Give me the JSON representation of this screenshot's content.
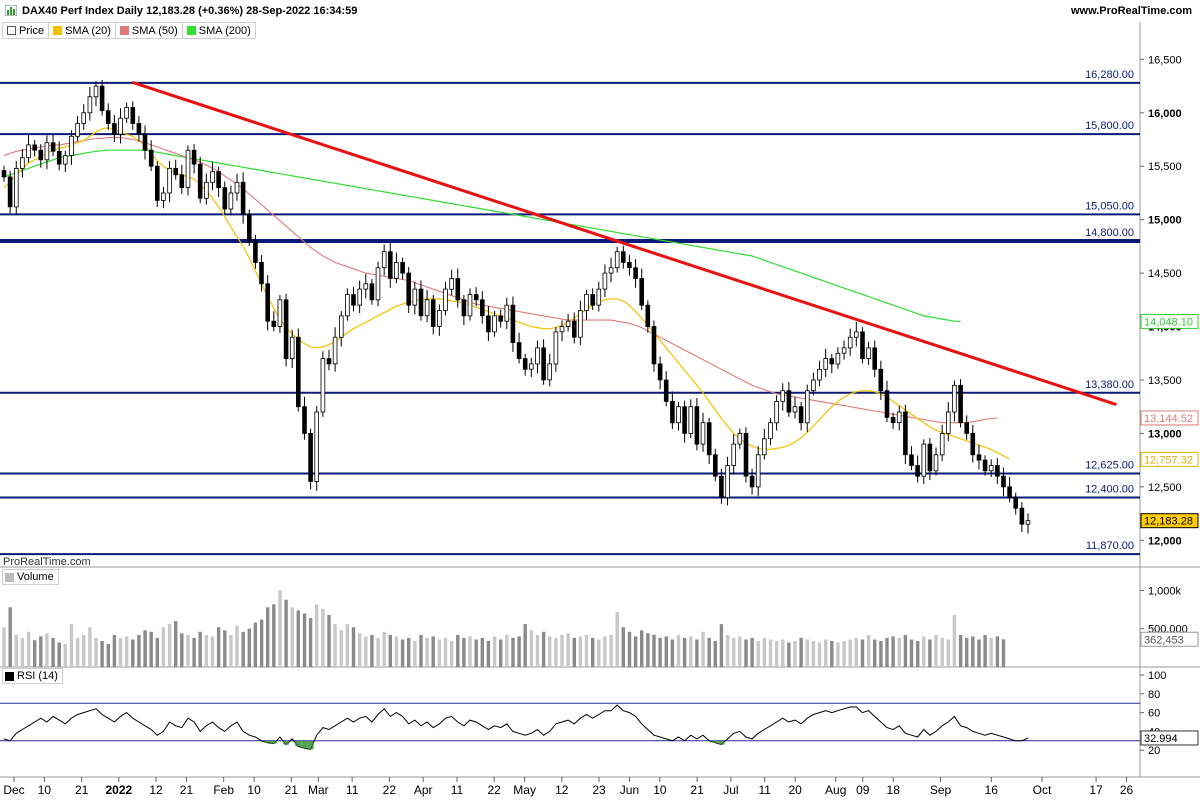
{
  "header": {
    "title": "DAX40 Perf Index Daily 12,183.28 (+0.36%) 28-Sep-2022 16:34:59",
    "site": "www.ProRealTime.com",
    "watermark": "ProRealTime.com"
  },
  "legend": [
    {
      "label": "Price",
      "color": "#ffffff",
      "border": "#555555"
    },
    {
      "label": "SMA (20)",
      "color": "#f2c200",
      "border": "#f2c200"
    },
    {
      "label": "SMA (50)",
      "color": "#e07a7a",
      "border": "#e07a7a"
    },
    {
      "label": "SMA (200)",
      "color": "#33dd33",
      "border": "#33dd33"
    }
  ],
  "panels": {
    "volume_label": "Volume",
    "rsi_label": "RSI (14)"
  },
  "chart_data": {
    "type": "candlestick",
    "x_ticks": [
      {
        "label": "Dec",
        "bold": false
      },
      {
        "label": "10",
        "bold": false
      },
      {
        "label": "21",
        "bold": false
      },
      {
        "label": "2022",
        "bold": true
      },
      {
        "label": "12",
        "bold": false
      },
      {
        "label": "21",
        "bold": false
      },
      {
        "label": "Feb",
        "bold": false
      },
      {
        "label": "10",
        "bold": false
      },
      {
        "label": "21",
        "bold": false
      },
      {
        "label": "Mar",
        "bold": false
      },
      {
        "label": "11",
        "bold": false
      },
      {
        "label": "22",
        "bold": false
      },
      {
        "label": "Apr",
        "bold": false
      },
      {
        "label": "11",
        "bold": false
      },
      {
        "label": "22",
        "bold": false
      },
      {
        "label": "May",
        "bold": false
      },
      {
        "label": "12",
        "bold": false
      },
      {
        "label": "23",
        "bold": false
      },
      {
        "label": "Jun",
        "bold": false
      },
      {
        "label": "10",
        "bold": false
      },
      {
        "label": "21",
        "bold": false
      },
      {
        "label": "Jul",
        "bold": false
      },
      {
        "label": "11",
        "bold": false
      },
      {
        "label": "20",
        "bold": false
      },
      {
        "label": "Aug",
        "bold": false
      },
      {
        "label": "09",
        "bold": false
      },
      {
        "label": "18",
        "bold": false
      },
      {
        "label": "Sep",
        "bold": false
      },
      {
        "label": "16",
        "bold": false
      },
      {
        "label": "Oct",
        "bold": false
      },
      {
        "label": "17",
        "bold": false
      },
      {
        "label": "26",
        "bold": false
      },
      {
        "label": "Dec",
        "bold": false
      }
    ],
    "price_axis": {
      "ticks": [
        "16,500",
        "16,000",
        "15,500",
        "15,000",
        "14,500",
        "14,000",
        "13,500",
        "13,000",
        "12,500",
        "12,000"
      ],
      "range": [
        11750,
        16700
      ]
    },
    "horizontal_levels": [
      {
        "value": 16280,
        "label": "16,280.00",
        "thick": false
      },
      {
        "value": 15800,
        "label": "15,800.00",
        "thick": false
      },
      {
        "value": 15050,
        "label": "15,050.00",
        "thick": false
      },
      {
        "value": 14800,
        "label": "14,800.00",
        "thick": true
      },
      {
        "value": 13380,
        "label": "13,380.00",
        "thick": false
      },
      {
        "value": 12625,
        "label": "12,625.00",
        "thick": false
      },
      {
        "value": 12400,
        "label": "12,400.00",
        "thick": false
      },
      {
        "value": 11870,
        "label": "11,870.00",
        "thick": false
      }
    ],
    "trendline": {
      "from": [
        "2022-01-05",
        16285
      ],
      "to": [
        "2022-10-23",
        13270
      ],
      "color": "#e81010"
    },
    "value_tags": [
      {
        "value": 14048.1,
        "label": "14,048.10",
        "color": "#33cc33",
        "fill": "#ffffff"
      },
      {
        "value": 13144.52,
        "label": "13,144.52",
        "color": "#e07a7a",
        "fill": "#ffffff"
      },
      {
        "value": 12757.32,
        "label": "12,757.32",
        "color": "#e0b000",
        "fill": "#ffffff"
      },
      {
        "value": 12183.28,
        "label": "12,183.28",
        "color": "#000000",
        "fill": "#ffcc00"
      }
    ],
    "closes": [
      15400,
      15120,
      15480,
      15580,
      15700,
      15650,
      15560,
      15720,
      15640,
      15520,
      15600,
      15780,
      15900,
      16000,
      16150,
      16250,
      16020,
      15900,
      15800,
      15950,
      16050,
      15900,
      15800,
      15650,
      15500,
      15180,
      15250,
      15480,
      15420,
      15300,
      15650,
      15520,
      15200,
      15350,
      15450,
      15300,
      15100,
      15250,
      15350,
      15050,
      14800,
      14600,
      14400,
      14050,
      14000,
      14250,
      13700,
      13900,
      13250,
      13000,
      12550,
      13200,
      13700,
      13650,
      13900,
      14100,
      14300,
      14200,
      14350,
      14400,
      14250,
      14550,
      14700,
      14450,
      14600,
      14500,
      14200,
      14350,
      14100,
      14250,
      14000,
      14150,
      14350,
      14450,
      14250,
      14100,
      14300,
      14250,
      14100,
      13950,
      14100,
      14050,
      14200,
      13850,
      13700,
      13600,
      13650,
      13800,
      13500,
      13650,
      13950,
      14000,
      14050,
      13900,
      14150,
      14300,
      14200,
      14350,
      14500,
      14550,
      14700,
      14600,
      14550,
      14450,
      14200,
      14000,
      13650,
      13500,
      13300,
      13100,
      13250,
      13000,
      13250,
      12900,
      13100,
      12800,
      12600,
      12400,
      12700,
      12900,
      13000,
      12600,
      12500,
      12800,
      12950,
      13100,
      13300,
      13400,
      13200,
      13250,
      13100,
      13400,
      13500,
      13600,
      13700,
      13650,
      13750,
      13800,
      13900,
      13950,
      13700,
      13800,
      13600,
      13400,
      13150,
      13100,
      13200,
      12800,
      12700,
      12600,
      12900,
      12650,
      12800,
      13000,
      13200,
      13450,
      13100,
      13000,
      12800,
      12750,
      12650,
      12700,
      12600,
      12500,
      12400,
      12300,
      12150,
      12183
    ],
    "sma20": [
      15300,
      15350,
      15420,
      15480,
      15530,
      15560,
      15590,
      15620,
      15650,
      15670,
      15680,
      15700,
      15720,
      15740,
      15780,
      15820,
      15850,
      15860,
      15840,
      15820,
      15800,
      15780,
      15740,
      15690,
      15620,
      15550,
      15500,
      15460,
      15440,
      15420,
      15400,
      15380,
      15330,
      15270,
      15200,
      15120,
      15030,
      14930,
      14840,
      14750,
      14640,
      14520,
      14400,
      14280,
      14170,
      14070,
      13990,
      13930,
      13880,
      13840,
      13810,
      13800,
      13810,
      13830,
      13860,
      13900,
      13940,
      13980,
      14010,
      14040,
      14070,
      14100,
      14130,
      14160,
      14190,
      14210,
      14230,
      14240,
      14250,
      14260,
      14260,
      14260,
      14250,
      14240,
      14230,
      14220,
      14200,
      14180,
      14160,
      14140,
      14120,
      14100,
      14080,
      14060,
      14040,
      14020,
      14000,
      13990,
      13980,
      13980,
      13990,
      14010,
      14040,
      14080,
      14120,
      14160,
      14200,
      14230,
      14250,
      14260,
      14260,
      14240,
      14200,
      14140,
      14080,
      14010,
      13940,
      13870,
      13800,
      13730,
      13660,
      13590,
      13520,
      13450,
      13380,
      13300,
      13220,
      13140,
      13070,
      13000,
      12950,
      12910,
      12880,
      12860,
      12850,
      12850,
      12860,
      12870,
      12890,
      12920,
      12960,
      13010,
      13070,
      13130,
      13190,
      13250,
      13300,
      13340,
      13370,
      13390,
      13400,
      13400,
      13390,
      13370,
      13340,
      13300,
      13260,
      13220,
      13180,
      13140,
      13100,
      13060,
      13030,
      13010,
      12990,
      12970,
      12950,
      12930,
      12910,
      12890,
      12870,
      12850,
      12820,
      12790,
      12760
    ],
    "sma50": [
      15600,
      15620,
      15640,
      15650,
      15660,
      15670,
      15680,
      15690,
      15700,
      15700,
      15710,
      15720,
      15730,
      15740,
      15750,
      15760,
      15760,
      15770,
      15770,
      15770,
      15760,
      15750,
      15740,
      15720,
      15700,
      15680,
      15660,
      15640,
      15620,
      15600,
      15580,
      15560,
      15540,
      15510,
      15480,
      15450,
      15410,
      15370,
      15330,
      15290,
      15240,
      15190,
      15140,
      15090,
      15040,
      14990,
      14940,
      14890,
      14840,
      14790,
      14740,
      14700,
      14660,
      14630,
      14600,
      14580,
      14560,
      14540,
      14520,
      14500,
      14490,
      14480,
      14470,
      14460,
      14450,
      14440,
      14430,
      14410,
      14390,
      14370,
      14350,
      14330,
      14310,
      14290,
      14270,
      14250,
      14230,
      14210,
      14200,
      14190,
      14180,
      14170,
      14160,
      14150,
      14140,
      14130,
      14120,
      14110,
      14100,
      14090,
      14080,
      14070,
      14060,
      14060,
      14060,
      14060,
      14060,
      14060,
      14060,
      14060,
      14050,
      14040,
      14030,
      14010,
      13990,
      13960,
      13930,
      13900,
      13870,
      13840,
      13810,
      13780,
      13750,
      13720,
      13690,
      13660,
      13630,
      13600,
      13570,
      13540,
      13510,
      13480,
      13450,
      13430,
      13410,
      13390,
      13370,
      13360,
      13350,
      13340,
      13330,
      13320,
      13310,
      13300,
      13290,
      13280,
      13270,
      13260,
      13250,
      13240,
      13230,
      13220,
      13210,
      13200,
      13190,
      13180,
      13170,
      13160,
      13150,
      13140,
      13130,
      13120,
      13110,
      13100,
      13100,
      13100,
      13100,
      13100,
      13110,
      13120,
      13130,
      13140,
      13145
    ],
    "sma200": [
      15400,
      15420,
      15440,
      15460,
      15480,
      15500,
      15520,
      15540,
      15560,
      15580,
      15590,
      15600,
      15610,
      15620,
      15630,
      15640,
      15645,
      15650,
      15650,
      15650,
      15650,
      15650,
      15650,
      15650,
      15640,
      15630,
      15620,
      15610,
      15600,
      15590,
      15580,
      15570,
      15560,
      15550,
      15540,
      15530,
      15520,
      15510,
      15500,
      15490,
      15480,
      15470,
      15460,
      15450,
      15440,
      15430,
      15420,
      15410,
      15400,
      15390,
      15380,
      15370,
      15360,
      15350,
      15340,
      15330,
      15320,
      15310,
      15300,
      15290,
      15280,
      15270,
      15260,
      15250,
      15240,
      15230,
      15220,
      15210,
      15200,
      15190,
      15180,
      15170,
      15160,
      15150,
      15140,
      15130,
      15120,
      15110,
      15100,
      15090,
      15080,
      15070,
      15060,
      15050,
      15040,
      15030,
      15020,
      15010,
      15000,
      14990,
      14980,
      14970,
      14960,
      14950,
      14940,
      14930,
      14920,
      14910,
      14900,
      14890,
      14880,
      14870,
      14860,
      14850,
      14840,
      14830,
      14820,
      14810,
      14800,
      14790,
      14780,
      14770,
      14760,
      14750,
      14740,
      14730,
      14720,
      14710,
      14700,
      14690,
      14680,
      14670,
      14660,
      14640,
      14620,
      14600,
      14580,
      14560,
      14540,
      14520,
      14500,
      14480,
      14460,
      14440,
      14420,
      14400,
      14380,
      14360,
      14340,
      14320,
      14300,
      14280,
      14260,
      14240,
      14220,
      14200,
      14180,
      14160,
      14140,
      14120,
      14100,
      14090,
      14080,
      14070,
      14060,
      14050,
      14048
    ],
    "volume": {
      "ticks": [
        "1,000k",
        "500,000"
      ],
      "range": [
        0,
        1150000
      ],
      "last_label": "362,453",
      "values": [
        520000,
        780000,
        420000,
        380000,
        460000,
        350000,
        400000,
        440000,
        380000,
        320000,
        300000,
        560000,
        380000,
        420000,
        520000,
        380000,
        340000,
        300000,
        420000,
        380000,
        400000,
        360000,
        420000,
        480000,
        460000,
        380000,
        520000,
        560000,
        600000,
        440000,
        420000,
        380000,
        460000,
        420000,
        400000,
        520000,
        480000,
        420000,
        540000,
        460000,
        500000,
        580000,
        620000,
        780000,
        820000,
        1000000,
        880000,
        780000,
        740000,
        700000,
        640000,
        820000,
        760000,
        680000,
        560000,
        480000,
        560000,
        520000,
        440000,
        400000,
        420000,
        380000,
        460000,
        420000,
        400000,
        360000,
        380000,
        340000,
        420000,
        380000,
        400000,
        360000,
        380000,
        340000,
        420000,
        380000,
        400000,
        360000,
        380000,
        340000,
        400000,
        360000,
        420000,
        380000,
        400000,
        560000,
        480000,
        420000,
        460000,
        400000,
        380000,
        420000,
        440000,
        380000,
        400000,
        420000,
        380000,
        360000,
        400000,
        420000,
        720000,
        520000,
        460000,
        400000,
        480000,
        440000,
        420000,
        380000,
        400000,
        360000,
        420000,
        380000,
        400000,
        360000,
        460000,
        380000,
        340000,
        560000,
        420000,
        380000,
        400000,
        360000,
        380000,
        340000,
        380000,
        360000,
        340000,
        360000,
        320000,
        340000,
        380000,
        360000,
        340000,
        320000,
        360000,
        340000,
        320000,
        340000,
        360000,
        380000,
        360000,
        420000,
        360000,
        340000,
        380000,
        400000,
        380000,
        420000,
        360000,
        340000,
        400000,
        360000,
        420000,
        380000,
        360000,
        680000,
        420000,
        380000,
        400000,
        360000,
        420000,
        380000,
        400000,
        362453
      ]
    },
    "rsi": {
      "ticks": [
        "100",
        "80",
        "60",
        "40",
        "20"
      ],
      "range": [
        0,
        100
      ],
      "upper": 70,
      "lower": 30,
      "last_label": "32.994",
      "values": [
        32,
        30,
        38,
        42,
        46,
        50,
        54,
        50,
        56,
        52,
        48,
        54,
        58,
        60,
        62,
        64,
        58,
        54,
        50,
        56,
        60,
        54,
        50,
        46,
        42,
        36,
        40,
        50,
        46,
        44,
        54,
        50,
        40,
        46,
        50,
        44,
        40,
        46,
        50,
        40,
        36,
        34,
        30,
        28,
        27,
        34,
        26,
        32,
        24,
        22,
        21,
        36,
        44,
        42,
        46,
        50,
        54,
        50,
        54,
        56,
        50,
        58,
        64,
        56,
        60,
        56,
        48,
        52,
        46,
        50,
        44,
        48,
        54,
        56,
        50,
        46,
        52,
        50,
        46,
        42,
        46,
        44,
        48,
        40,
        38,
        36,
        38,
        42,
        36,
        40,
        48,
        50,
        52,
        48,
        54,
        58,
        54,
        58,
        62,
        62,
        68,
        62,
        60,
        56,
        48,
        42,
        36,
        34,
        32,
        30,
        34,
        30,
        36,
        32,
        36,
        30,
        28,
        26,
        32,
        38,
        40,
        34,
        32,
        38,
        42,
        46,
        50,
        54,
        50,
        52,
        48,
        54,
        58,
        60,
        62,
        60,
        62,
        64,
        66,
        66,
        60,
        62,
        56,
        50,
        44,
        42,
        46,
        38,
        36,
        34,
        42,
        36,
        40,
        46,
        50,
        56,
        46,
        44,
        40,
        38,
        36,
        38,
        36,
        34,
        32,
        30,
        30,
        33
      ]
    }
  }
}
